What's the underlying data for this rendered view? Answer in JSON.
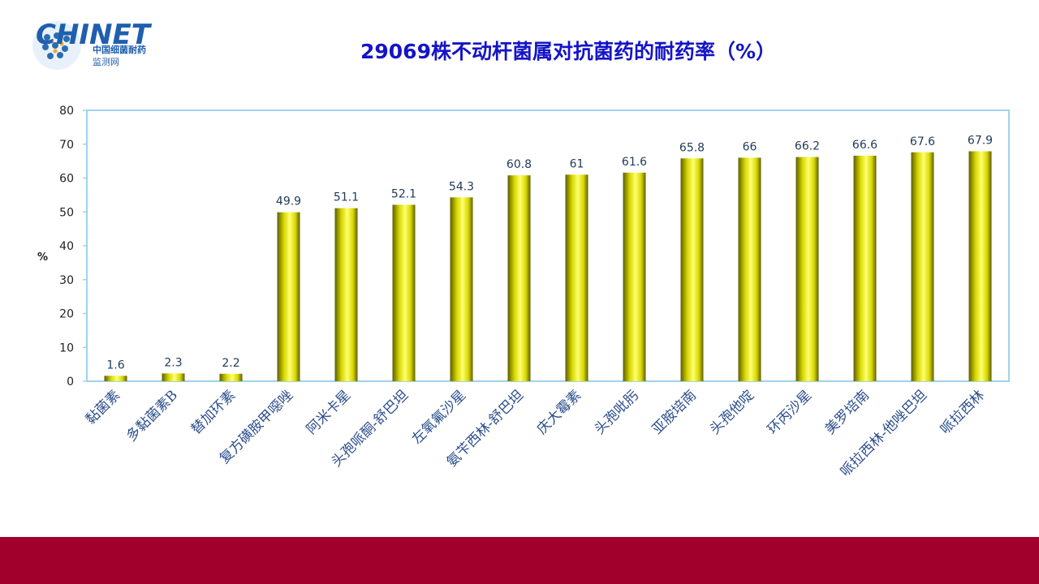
{
  "brand": {
    "name": "CHINET",
    "subtitle_line1": "中国细菌耐药",
    "subtitle_line2": "监测网"
  },
  "chart_data": {
    "type": "bar",
    "title": "29069株不动杆菌属对抗菌药的耐药率（%）",
    "ylabel": "%",
    "xlabel": "",
    "ylim": [
      0,
      80
    ],
    "yticks": [
      0,
      10,
      20,
      30,
      40,
      50,
      60,
      70,
      80
    ],
    "grid": false,
    "categories": [
      "黏菌素",
      "多黏菌素B",
      "替加环素",
      "复方磺胺甲噁唑",
      "阿米卡星",
      "头孢哌酮-舒巴坦",
      "左氧氟沙星",
      "氨苄西林-舒巴坦",
      "庆大霉素",
      "头孢吡肟",
      "亚胺培南",
      "头孢他啶",
      "环丙沙星",
      "美罗培南",
      "哌拉西林-他唑巴坦",
      "哌拉西林"
    ],
    "values": [
      1.6,
      2.3,
      2.2,
      49.9,
      51.1,
      52.1,
      54.3,
      60.8,
      61,
      61.6,
      65.8,
      66,
      66.2,
      66.6,
      67.6,
      67.9
    ],
    "data_labels": [
      "1.6",
      "2.3",
      "2.2",
      "49.9",
      "51.1",
      "52.1",
      "54.3",
      "60.8",
      "61",
      "61.6",
      "65.8",
      "66",
      "66.2",
      "66.6",
      "67.6",
      "67.9"
    ],
    "colors": {
      "bar_light": "#ffff66",
      "bar_mid": "#e0e000",
      "bar_dark": "#6b6b00",
      "frame": "#9fd3ec"
    }
  }
}
